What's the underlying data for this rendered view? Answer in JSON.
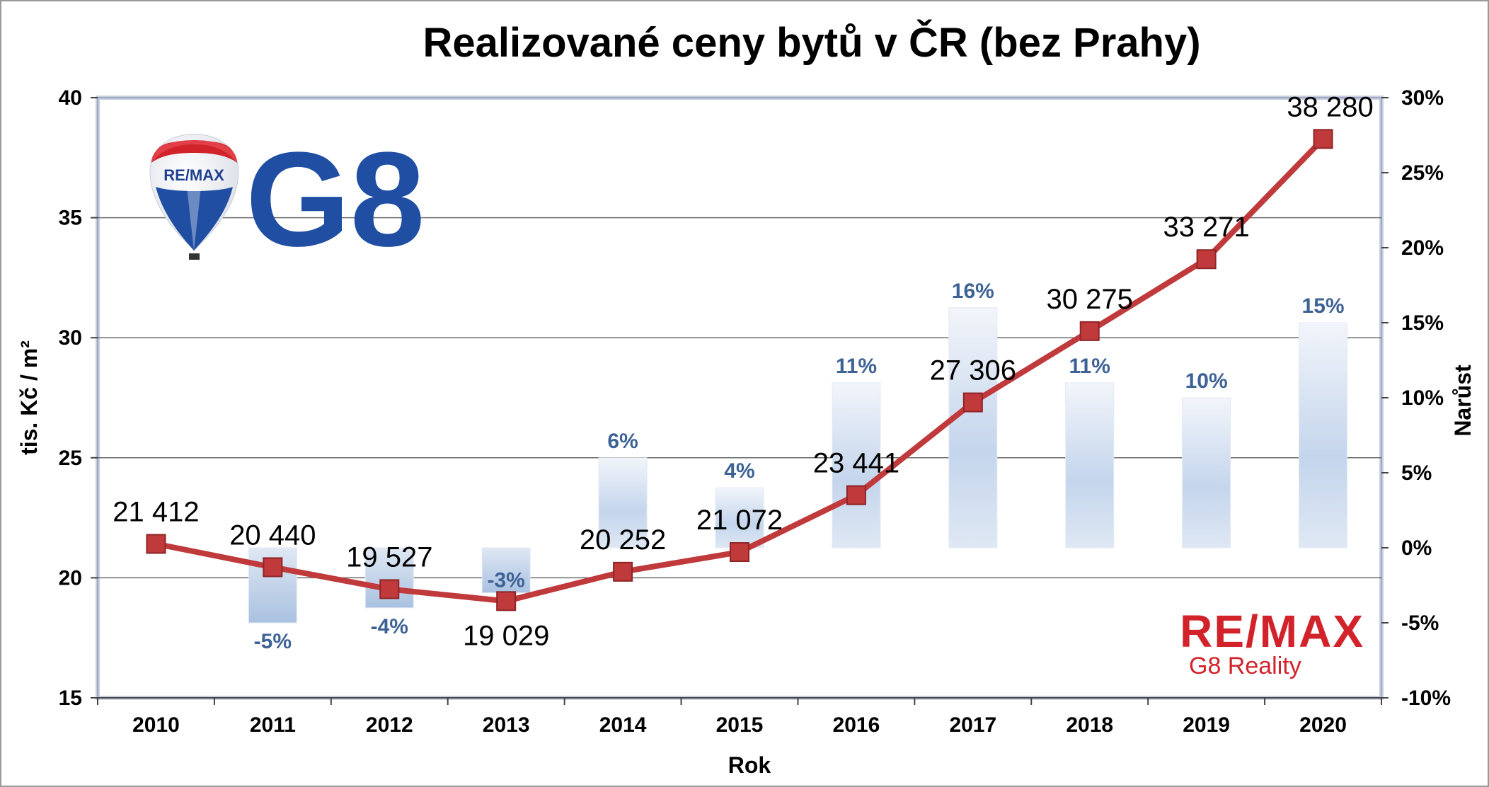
{
  "chart_data": {
    "type": "bar+line",
    "title": "Realizované ceny bytů v ČR (bez Prahy)",
    "xlabel": "Rok",
    "ylabel_left": "tis. Kč / m²",
    "ylabel_right": "Narůst",
    "categories": [
      "2010",
      "2011",
      "2012",
      "2013",
      "2014",
      "2015",
      "2016",
      "2017",
      "2018",
      "2019",
      "2020"
    ],
    "ylim_left": [
      15,
      40
    ],
    "yticks_left": [
      "15",
      "20",
      "25",
      "30",
      "35",
      "40"
    ],
    "ylim_right": [
      -10,
      30
    ],
    "yticks_right": [
      "-10%",
      "-5%",
      "0%",
      "5%",
      "10%",
      "15%",
      "20%",
      "25%",
      "30%"
    ],
    "grid": true,
    "series": [
      {
        "type": "line",
        "values": [
          21.412,
          20.44,
          19.527,
          19.029,
          20.252,
          21.072,
          23.441,
          27.306,
          30.275,
          33.271,
          38.28
        ],
        "labels": [
          "21 412",
          "20 440",
          "19 527",
          "19 029",
          "20 252",
          "21 072",
          "23 441",
          "27 306",
          "30 275",
          "33 271",
          "38 280"
        ],
        "color": "#c0393b"
      },
      {
        "type": "bar",
        "values": [
          null,
          -5,
          -4,
          -3,
          6,
          4,
          11,
          16,
          11,
          10,
          15
        ],
        "labels": [
          "",
          "-5%",
          "-4%",
          "-3%",
          "6%",
          "4%",
          "11%",
          "16%",
          "11%",
          "10%",
          "15%"
        ],
        "color": "#a9c1e0"
      }
    ]
  },
  "branding": {
    "balloon_text": "RE/MAX",
    "logo_text": "G8",
    "brand_name": "RE/MAX",
    "brand_subtitle": "G8 Reality"
  }
}
